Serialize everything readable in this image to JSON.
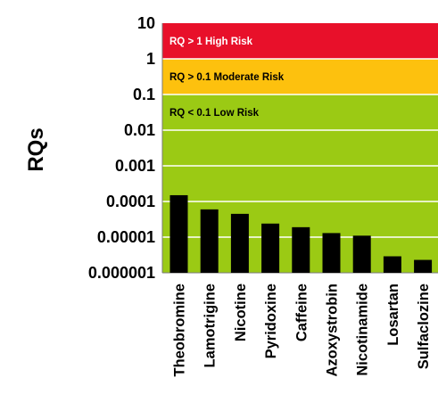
{
  "chart_data": {
    "type": "bar",
    "ylabel": "RQs",
    "xlabel": "",
    "title": "",
    "yscale": "log",
    "ylim": [
      1e-06,
      10
    ],
    "yticks": [
      {
        "value": 10,
        "label": "10"
      },
      {
        "value": 1,
        "label": "1"
      },
      {
        "value": 0.1,
        "label": "0.1"
      },
      {
        "value": 0.01,
        "label": "0.01"
      },
      {
        "value": 0.001,
        "label": "0.001"
      },
      {
        "value": 0.0001,
        "label": "0.0001"
      },
      {
        "value": 1e-05,
        "label": "0.00001"
      },
      {
        "value": 1e-06,
        "label": "0.000001"
      }
    ],
    "categories": [
      "Theobromine",
      "Lamotrigine",
      "Nicotine",
      "Pyridoxine",
      "Caffeine",
      "Azoxystrobin",
      "Nicotinamide",
      "Losartan",
      "Sulfaclozine"
    ],
    "values": [
      0.00015,
      6e-05,
      4.5e-05,
      2.4e-05,
      1.9e-05,
      1.3e-05,
      1.1e-05,
      2.9e-06,
      2.3e-06
    ],
    "bar_color": "#000000",
    "grid": true,
    "grid_color": "#ffffff",
    "zones": [
      {
        "label": "RQ > 1   High Risk",
        "from": 1,
        "to": 10,
        "color": "#e8102a",
        "text_color": "#ffffff"
      },
      {
        "label": "RQ > 0.1 Moderate Risk",
        "from": 0.1,
        "to": 1,
        "color": "#fdc10e",
        "text_color": "#000000"
      },
      {
        "label": "RQ < 0.1  Low Risk",
        "from": 1e-06,
        "to": 0.1,
        "color": "#9bca14",
        "text_color": "#000000"
      }
    ]
  }
}
